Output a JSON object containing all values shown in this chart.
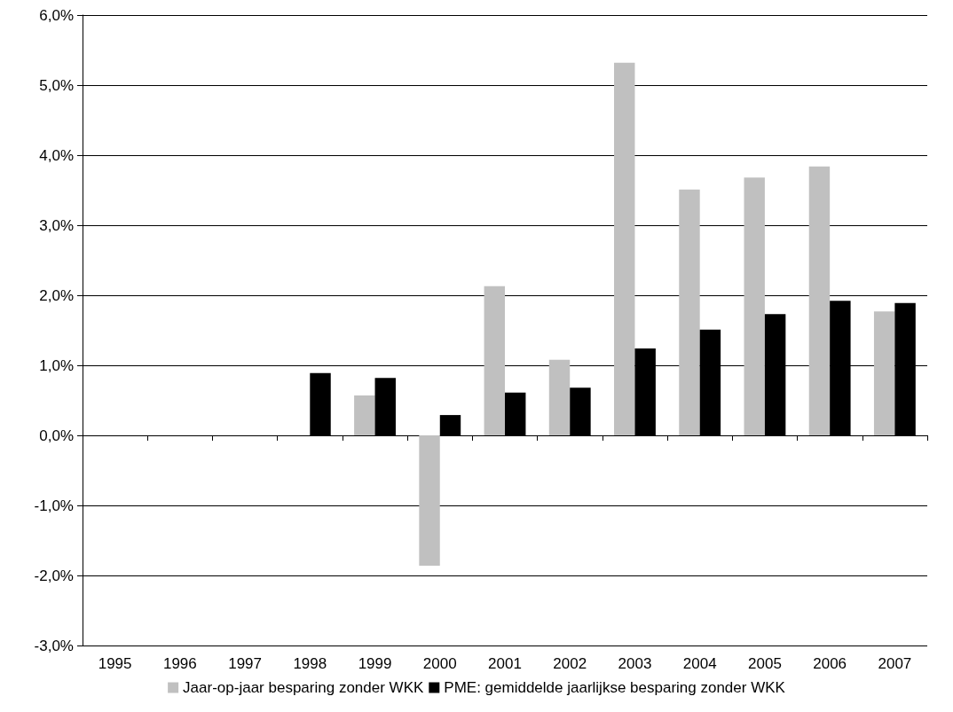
{
  "chart_data": {
    "type": "bar",
    "categories": [
      "1995",
      "1996",
      "1997",
      "1998",
      "1999",
      "2000",
      "2001",
      "2002",
      "2003",
      "2004",
      "2005",
      "2006",
      "2007"
    ],
    "series": [
      {
        "name": "Jaar-op-jaar besparing zonder WKK",
        "color": "#c0c0c0",
        "values": [
          null,
          null,
          null,
          null,
          0.57,
          -1.86,
          2.13,
          1.08,
          5.32,
          3.51,
          3.68,
          3.84,
          1.77
        ]
      },
      {
        "name": "PME: gemiddelde jaarlijkse besparing zonder WKK",
        "color": "#000000",
        "values": [
          null,
          null,
          null,
          0.89,
          0.82,
          0.29,
          0.61,
          0.68,
          1.24,
          1.51,
          1.73,
          1.92,
          1.89
        ]
      }
    ],
    "ylim": [
      -3,
      6
    ],
    "yticks": [
      {
        "value": -3,
        "label": "-3,0%"
      },
      {
        "value": -2,
        "label": "-2,0%"
      },
      {
        "value": -1,
        "label": "-1,0%"
      },
      {
        "value": 0,
        "label": "0,0%"
      },
      {
        "value": 1,
        "label": "1,0%"
      },
      {
        "value": 2,
        "label": "2,0%"
      },
      {
        "value": 3,
        "label": "3,0%"
      },
      {
        "value": 4,
        "label": "4,0%"
      },
      {
        "value": 5,
        "label": "5,0%"
      },
      {
        "value": 6,
        "label": "6,0%"
      }
    ],
    "grid": "y",
    "legend": "bottom"
  }
}
